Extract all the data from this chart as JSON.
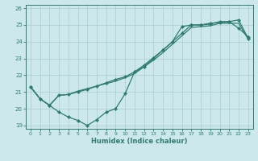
{
  "xlabel": "Humidex (Indice chaleur)",
  "bg_color": "#cce8ec",
  "line_color": "#2e7d6e",
  "grid_color": "#aaccd0",
  "xlim": [
    -0.5,
    23.5
  ],
  "ylim": [
    18.8,
    26.2
  ],
  "xticks": [
    0,
    1,
    2,
    3,
    4,
    5,
    6,
    7,
    8,
    9,
    10,
    11,
    12,
    13,
    14,
    15,
    16,
    17,
    18,
    19,
    20,
    21,
    22,
    23
  ],
  "yticks": [
    19,
    20,
    21,
    22,
    23,
    24,
    25,
    26
  ],
  "line1_x": [
    0,
    1,
    2,
    3,
    4,
    5,
    6,
    7,
    8,
    9,
    10,
    11,
    12,
    13,
    14,
    15,
    16,
    17,
    18,
    19,
    20,
    21,
    22,
    23
  ],
  "line1_y": [
    21.3,
    20.6,
    20.2,
    19.8,
    19.5,
    19.3,
    19.0,
    19.35,
    19.8,
    20.0,
    20.9,
    22.2,
    22.5,
    23.0,
    23.5,
    24.0,
    24.9,
    25.0,
    25.0,
    25.1,
    25.15,
    25.2,
    24.8,
    24.3
  ],
  "line2_x": [
    0,
    1,
    2,
    3,
    4,
    5,
    6,
    7,
    8,
    9,
    10,
    11,
    12,
    13,
    14,
    15,
    16,
    17,
    18,
    19,
    20,
    21,
    22,
    23
  ],
  "line2_y": [
    21.3,
    20.6,
    20.2,
    20.8,
    20.85,
    21.0,
    21.15,
    21.35,
    21.55,
    21.75,
    21.9,
    22.2,
    22.6,
    23.05,
    23.5,
    24.0,
    24.5,
    25.0,
    25.0,
    25.05,
    25.2,
    25.2,
    25.3,
    24.2
  ],
  "line3_x": [
    0,
    1,
    2,
    3,
    4,
    5,
    6,
    7,
    8,
    9,
    10,
    11,
    12,
    13,
    14,
    15,
    16,
    17,
    18,
    19,
    20,
    21,
    22,
    23
  ],
  "line3_y": [
    21.3,
    20.6,
    20.2,
    20.8,
    20.85,
    21.05,
    21.2,
    21.35,
    21.5,
    21.65,
    21.85,
    22.1,
    22.5,
    22.9,
    23.35,
    23.85,
    24.35,
    24.85,
    24.9,
    24.95,
    25.1,
    25.1,
    25.1,
    24.15
  ]
}
